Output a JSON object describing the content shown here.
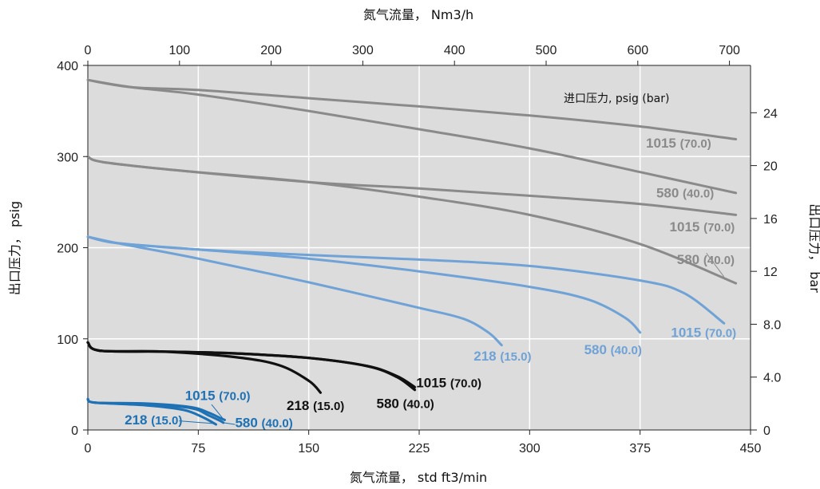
{
  "chart_data": {
    "type": "line",
    "title": "",
    "xlabel": "氮气流量， std ft3/min",
    "x2label": "氮气流量， Nm3/h",
    "ylabel": "出口压力， psig",
    "y2label": "出口压力， bar",
    "xlim": [
      0,
      450
    ],
    "ylim": [
      0,
      400
    ],
    "x2lim": [
      0,
      723
    ],
    "y2lim": [
      0,
      27.58
    ],
    "x_ticks": [
      "0",
      "75",
      "150",
      "225",
      "300",
      "375",
      "450"
    ],
    "y_ticks": [
      "0",
      "100",
      "200",
      "300",
      "400"
    ],
    "x2_ticks": [
      "0",
      "100",
      "200",
      "300",
      "400",
      "500",
      "600",
      "700"
    ],
    "y2_ticks": [
      "0",
      "4.0",
      "8.0",
      "12",
      "16",
      "20",
      "24"
    ],
    "x_grid": [
      75,
      150,
      225,
      300,
      375
    ],
    "y_grid": [
      100,
      200,
      300
    ],
    "legend_title": "进口压力, psig (bar)",
    "colors": {
      "background": "#dcdcdc",
      "grid": "#ffffff",
      "gray": "#8a8a8a",
      "lightblue": "#6fa2d6",
      "black": "#111111",
      "blue": "#1d71b4"
    },
    "series": [
      {
        "group": "gray-high",
        "color": "gray",
        "label_num": "1015",
        "label_paren": "(70.0)",
        "x": [
          0,
          30,
          75,
          150,
          225,
          300,
          375,
          440
        ],
        "y": [
          384,
          376,
          373,
          364,
          355,
          345,
          333,
          319
        ]
      },
      {
        "group": "gray-high",
        "color": "gray",
        "label_num": "580",
        "label_paren": "(40.0)",
        "x": [
          0,
          30,
          75,
          150,
          225,
          300,
          375,
          440
        ],
        "y": [
          384,
          376,
          368,
          350,
          330,
          309,
          283,
          260
        ]
      },
      {
        "group": "gray-mid",
        "color": "gray",
        "label_num": "1015",
        "label_paren": "(70.0)",
        "x": [
          0,
          10,
          60,
          150,
          225,
          300,
          375,
          440
        ],
        "y": [
          300,
          294,
          285,
          272,
          265,
          257,
          248,
          236
        ]
      },
      {
        "group": "gray-mid",
        "color": "gray",
        "label_num": "580",
        "label_paren": "(40.0)",
        "x": [
          0,
          10,
          60,
          150,
          225,
          300,
          375,
          440
        ],
        "y": [
          300,
          294,
          285,
          272,
          256,
          236,
          204,
          161
        ]
      },
      {
        "group": "lightblue",
        "color": "lightblue",
        "label_num": "1015",
        "label_paren": "(70.0)",
        "x": [
          0,
          20,
          75,
          150,
          225,
          300,
          375,
          405,
          432
        ],
        "y": [
          212,
          205,
          198,
          192,
          187,
          180,
          164,
          150,
          117
        ]
      },
      {
        "group": "lightblue",
        "color": "lightblue",
        "label_num": "580",
        "label_paren": "(40.0)",
        "x": [
          0,
          20,
          75,
          150,
          225,
          300,
          340,
          365,
          375
        ],
        "y": [
          212,
          205,
          198,
          188,
          174,
          157,
          143,
          123,
          107
        ]
      },
      {
        "group": "lightblue",
        "color": "lightblue",
        "label_num": "218",
        "label_paren": "(15.0)",
        "x": [
          0,
          20,
          75,
          150,
          225,
          255,
          272,
          281
        ],
        "y": [
          212,
          205,
          188,
          162,
          134,
          122,
          107,
          93
        ]
      },
      {
        "group": "black",
        "color": "black",
        "label_num": "1015",
        "label_paren": "(70.0)",
        "x": [
          0,
          8,
          50,
          100,
          150,
          190,
          210,
          222
        ],
        "y": [
          96,
          87,
          86,
          84,
          79,
          70,
          59,
          47
        ]
      },
      {
        "group": "black",
        "color": "black",
        "label_num": "580",
        "label_paren": "(40.0)",
        "x": [
          0,
          8,
          50,
          100,
          150,
          190,
          210,
          222
        ],
        "y": [
          96,
          87,
          86,
          84,
          79,
          70,
          58,
          44
        ]
      },
      {
        "group": "black",
        "color": "black",
        "label_num": "218",
        "label_paren": "(15.0)",
        "x": [
          0,
          8,
          50,
          100,
          130,
          150,
          158
        ],
        "y": [
          96,
          87,
          86,
          80,
          71,
          54,
          41
        ]
      },
      {
        "group": "blue",
        "color": "blue",
        "label_num": "1015",
        "label_paren": "(70.0)",
        "x": [
          0,
          5,
          40,
          70,
          82,
          90,
          93
        ],
        "y": [
          34,
          30,
          29,
          25,
          19,
          13,
          11
        ]
      },
      {
        "group": "blue",
        "color": "blue",
        "label_num": "580",
        "label_paren": "(40.0)",
        "x": [
          0,
          5,
          40,
          70,
          82,
          90,
          92
        ],
        "y": [
          34,
          30,
          28,
          24,
          16,
          10,
          8
        ]
      },
      {
        "group": "blue",
        "color": "blue",
        "label_num": "218",
        "label_paren": "(15.0)",
        "x": [
          0,
          5,
          40,
          65,
          78,
          85,
          87
        ],
        "y": [
          34,
          30,
          27,
          22,
          14,
          8,
          6
        ]
      }
    ],
    "labels": [
      {
        "num": "1015",
        "paren": "(70.0)",
        "color": "gray",
        "x": 379,
        "y": 310
      },
      {
        "num": "580",
        "paren": "(40.0)",
        "color": "gray",
        "x": 386,
        "y": 255
      },
      {
        "num": "1015",
        "paren": "(70.0)",
        "color": "gray",
        "x": 395,
        "y": 218
      },
      {
        "num": "580",
        "paren": "(40.0)",
        "color": "gray",
        "x": 400,
        "y": 182
      },
      {
        "num": "218",
        "paren": "(15.0)",
        "color": "lightblue",
        "x": 262,
        "y": 76
      },
      {
        "num": "580",
        "paren": "(40.0)",
        "color": "lightblue",
        "x": 337,
        "y": 83
      },
      {
        "num": "1015",
        "paren": "(70.0)",
        "color": "lightblue",
        "x": 396,
        "y": 102
      },
      {
        "num": "1015",
        "paren": "(70.0)",
        "color": "black",
        "x": 223,
        "y": 47
      },
      {
        "num": "580",
        "paren": "(40.0)",
        "color": "black",
        "x": 196,
        "y": 24
      },
      {
        "num": "218",
        "paren": "(15.0)",
        "color": "black",
        "x": 135,
        "y": 22
      },
      {
        "num": "1015",
        "paren": "(70.0)",
        "color": "blue",
        "x": 66,
        "y": 33
      },
      {
        "num": "218",
        "paren": "(15.0)",
        "color": "blue",
        "x": 25,
        "y": 6
      },
      {
        "num": "580",
        "paren": "(40.0)",
        "color": "blue",
        "x": 100,
        "y": 3
      }
    ]
  }
}
